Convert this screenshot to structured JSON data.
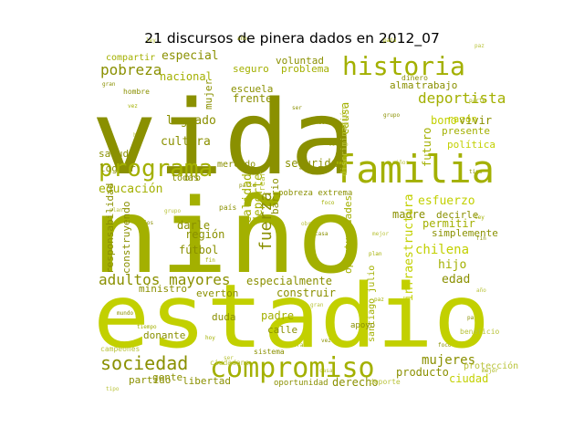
{
  "title": "21 discursos de pinera dados en 2012_07",
  "colors": {
    "background": "#ffffff",
    "title": "#000000",
    "dark": "#8a9000",
    "mid": "#a3b000",
    "light": "#c2d000",
    "pale": "#b9c33a"
  },
  "words": [
    {
      "text": "vida",
      "color": "dark"
    },
    {
      "text": "niño",
      "color": "mid"
    },
    {
      "text": "estadio",
      "color": "light"
    },
    {
      "text": "historia",
      "color": "mid"
    },
    {
      "text": "familia",
      "color": "mid"
    },
    {
      "text": "programa",
      "color": "mid"
    },
    {
      "text": "compromiso",
      "color": "mid"
    },
    {
      "text": "sociedad",
      "color": "dark"
    },
    {
      "text": "adultos mayores",
      "color": "dark"
    },
    {
      "text": "deportista",
      "color": "mid"
    },
    {
      "text": "pobreza",
      "color": "dark"
    },
    {
      "text": "chilena",
      "color": "light"
    },
    {
      "text": "mujeres",
      "color": "dark"
    },
    {
      "text": "fuerza",
      "color": "dark"
    },
    {
      "text": "especial",
      "color": "dark"
    },
    {
      "text": "compartir",
      "color": "mid"
    },
    {
      "text": "nacional",
      "color": "mid"
    },
    {
      "text": "voluntad",
      "color": "dark"
    },
    {
      "text": "seguro",
      "color": "mid"
    },
    {
      "text": "problema",
      "color": "mid"
    },
    {
      "text": "escuela",
      "color": "dark"
    },
    {
      "text": "alma",
      "color": "dark"
    },
    {
      "text": "trabajo",
      "color": "dark"
    },
    {
      "text": "razón",
      "color": "light"
    },
    {
      "text": "frente",
      "color": "dark"
    },
    {
      "text": "causa",
      "color": "mid"
    },
    {
      "text": "bono",
      "color": "light"
    },
    {
      "text": "vivir",
      "color": "dark"
    },
    {
      "text": "presente",
      "color": "mid"
    },
    {
      "text": "política",
      "color": "light"
    },
    {
      "text": "logrado",
      "color": "dark"
    },
    {
      "text": "cultura",
      "color": "dark"
    },
    {
      "text": "salud",
      "color": "dark"
    },
    {
      "text": "seguridad",
      "color": "dark"
    },
    {
      "text": "futuro",
      "color": "mid"
    },
    {
      "text": "lograr",
      "color": "dark"
    },
    {
      "text": "educación",
      "color": "mid"
    },
    {
      "text": "esfuerzo",
      "color": "light"
    },
    {
      "text": "calidad",
      "color": "mid"
    },
    {
      "text": "deporte",
      "color": "mid"
    },
    {
      "text": "madre",
      "color": "dark"
    },
    {
      "text": "decirle",
      "color": "dark"
    },
    {
      "text": "permitir",
      "color": "mid"
    },
    {
      "text": "simplemente",
      "color": "dark"
    },
    {
      "text": "darle",
      "color": "dark"
    },
    {
      "text": "región",
      "color": "dark"
    },
    {
      "text": "fútbol",
      "color": "dark"
    },
    {
      "text": "hijo",
      "color": "mid"
    },
    {
      "text": "edad",
      "color": "dark"
    },
    {
      "text": "especialmente",
      "color": "dark"
    },
    {
      "text": "construir",
      "color": "dark"
    },
    {
      "text": "ministro",
      "color": "dark"
    },
    {
      "text": "everton",
      "color": "dark"
    },
    {
      "text": "duda",
      "color": "dark"
    },
    {
      "text": "padre",
      "color": "mid"
    },
    {
      "text": "donante",
      "color": "dark"
    },
    {
      "text": "calle",
      "color": "dark"
    },
    {
      "text": "producto",
      "color": "dark"
    },
    {
      "text": "ciudad",
      "color": "light"
    },
    {
      "text": "partido",
      "color": "dark"
    },
    {
      "text": "gente",
      "color": "dark"
    },
    {
      "text": "libertad",
      "color": "dark"
    },
    {
      "text": "derecho",
      "color": "dark"
    },
    {
      "text": "oportunidades",
      "color": "mid"
    },
    {
      "text": "mujer",
      "color": "dark"
    },
    {
      "text": "responsabilidad",
      "color": "dark"
    },
    {
      "text": "construyendo",
      "color": "dark"
    },
    {
      "text": "infraestructura",
      "color": "light"
    },
    {
      "text": "santiago julio",
      "color": "mid"
    },
    {
      "text": "barrio cívico",
      "color": "dark"
    },
    {
      "text": "pobreza extrema",
      "color": "dark"
    },
    {
      "text": "oportunidad",
      "color": "dark"
    },
    {
      "text": "todas",
      "color": "dark"
    },
    {
      "text": "oro",
      "color": "dark"
    },
    {
      "text": "mercado",
      "color": "dark"
    },
    {
      "text": "discriminación",
      "color": "pale"
    },
    {
      "text": "crear",
      "color": "pale"
    },
    {
      "text": "protección",
      "color": "pale"
    },
    {
      "text": "apoyo",
      "color": "dark"
    },
    {
      "text": "hombre",
      "color": "dark"
    },
    {
      "text": "dinero",
      "color": "dark"
    },
    {
      "text": "ciudadano",
      "color": "pale"
    },
    {
      "text": "deporte",
      "color": "pale"
    },
    {
      "text": "beneficio",
      "color": "pale"
    },
    {
      "text": "país",
      "color": "dark"
    },
    {
      "text": "campeones",
      "color": "pale"
    },
    {
      "text": "sistema",
      "color": "dark"
    }
  ]
}
